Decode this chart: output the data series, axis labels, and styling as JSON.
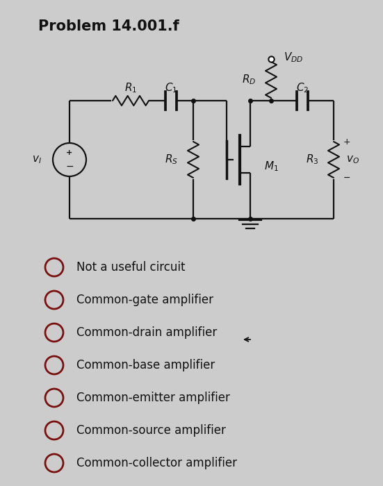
{
  "title": "Problem 14.001.f",
  "bg_color": "#cccccc",
  "title_fontsize": 15,
  "options": [
    "Not a useful circuit",
    "Common-gate amplifier",
    "Common-drain amplifier",
    "Common-base amplifier",
    "Common-emitter amplifier",
    "Common-source amplifier",
    "Common-collector amplifier"
  ],
  "line_color": "#111111",
  "lw": 1.6
}
